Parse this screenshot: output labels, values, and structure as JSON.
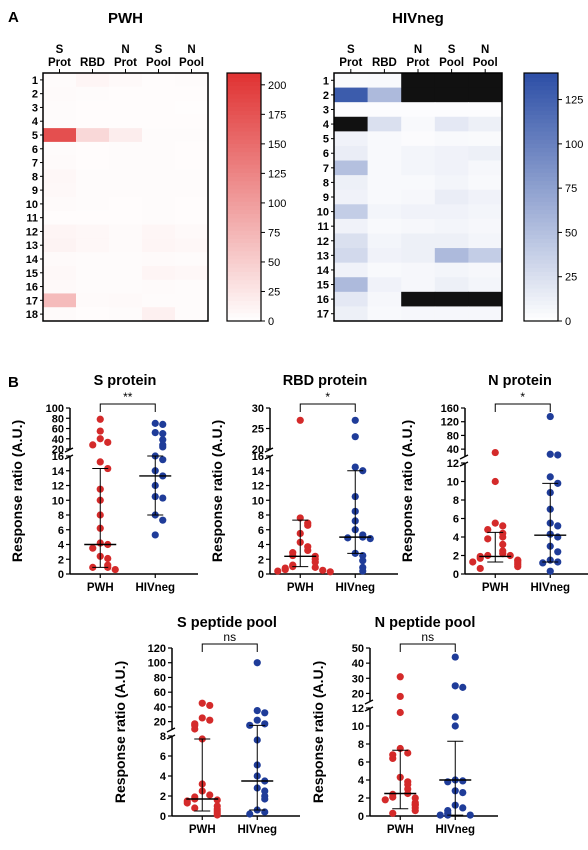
{
  "labels": {
    "panel_a": "A",
    "panel_b": "B"
  },
  "colors": {
    "pwh": "#d42a2a",
    "hivneg": "#1f3c99",
    "heatmap_pwh_max": "#e03232",
    "heatmap_hivneg_max": "#2d4fa6",
    "missing": "#111111"
  },
  "chart_data": [
    {
      "type": "heatmap",
      "title": "PWH",
      "columns": [
        "S\nProt",
        "RBD",
        "N\nProt",
        "S\nPool",
        "N\nPool"
      ],
      "rows": [
        "1",
        "2",
        "3",
        "4",
        "5",
        "6",
        "7",
        "8",
        "9",
        "10",
        "11",
        "12",
        "13",
        "14",
        "15",
        "16",
        "17",
        "18"
      ],
      "colorbar": {
        "min": 0,
        "max": 210,
        "ticks": [
          0,
          25,
          50,
          75,
          100,
          125,
          150,
          175,
          200
        ]
      },
      "values": [
        [
          4,
          10,
          6,
          3,
          4
        ],
        [
          5,
          4,
          3,
          3,
          3
        ],
        [
          4,
          3,
          3,
          3,
          2
        ],
        [
          4,
          3,
          3,
          3,
          3
        ],
        [
          180,
          40,
          18,
          4,
          4
        ],
        [
          4,
          3,
          4,
          4,
          3
        ],
        [
          5,
          3,
          4,
          4,
          3
        ],
        [
          8,
          4,
          4,
          4,
          4
        ],
        [
          7,
          4,
          4,
          4,
          4
        ],
        [
          5,
          4,
          3,
          4,
          3
        ],
        [
          3,
          3,
          3,
          4,
          3
        ],
        [
          10,
          8,
          5,
          9,
          6
        ],
        [
          12,
          8,
          5,
          10,
          8
        ],
        [
          5,
          4,
          4,
          5,
          4
        ],
        [
          7,
          4,
          4,
          10,
          8
        ],
        [
          6,
          4,
          4,
          5,
          4
        ],
        [
          70,
          5,
          6,
          4,
          4
        ],
        [
          5,
          3,
          4,
          15,
          4
        ]
      ]
    },
    {
      "type": "heatmap",
      "title": "HIVneg",
      "columns": [
        "S\nProt",
        "RBD",
        "N\nProt",
        "S\nPool",
        "N\nPool"
      ],
      "rows": [
        "1",
        "2",
        "3",
        "4",
        "5",
        "6",
        "7",
        "8",
        "9",
        "10",
        "11",
        "12",
        "13",
        "14",
        "15",
        "16",
        "17"
      ],
      "colorbar": {
        "min": 0,
        "max": 140,
        "ticks": [
          0,
          25,
          50,
          75,
          100,
          125
        ]
      },
      "values": [
        [
          4,
          5,
          null,
          null,
          null
        ],
        [
          130,
          55,
          null,
          null,
          null
        ],
        [
          2,
          2,
          2,
          2,
          2
        ],
        [
          null,
          25,
          5,
          18,
          12
        ],
        [
          10,
          5,
          3,
          5,
          4
        ],
        [
          14,
          5,
          8,
          10,
          12
        ],
        [
          50,
          5,
          8,
          10,
          6
        ],
        [
          12,
          5,
          5,
          8,
          5
        ],
        [
          10,
          5,
          6,
          14,
          10
        ],
        [
          40,
          8,
          10,
          10,
          8
        ],
        [
          10,
          5,
          6,
          8,
          6
        ],
        [
          25,
          8,
          12,
          12,
          8
        ],
        [
          30,
          10,
          12,
          55,
          40
        ],
        [
          10,
          5,
          6,
          8,
          6
        ],
        [
          55,
          10,
          6,
          12,
          8
        ],
        [
          18,
          6,
          null,
          null,
          null
        ],
        [
          12,
          5,
          6,
          6,
          6
        ]
      ]
    },
    {
      "type": "scatter",
      "title": "S protein",
      "ylabel": "Response ratio (A.U.)",
      "categories": [
        "PWH",
        "HIVneg"
      ],
      "significance": "**",
      "axis": {
        "lower": [
          0,
          16
        ],
        "lower_ticks": [
          0,
          2,
          4,
          6,
          8,
          10,
          12,
          14,
          16
        ],
        "upper": [
          20,
          100
        ],
        "upper_ticks": [
          20,
          40,
          60,
          80,
          100
        ]
      },
      "series": [
        {
          "category": "PWH",
          "median": 4.0,
          "iqr": [
            0.9,
            14.3
          ],
          "values": [
            78,
            55,
            40,
            33,
            28,
            15.2,
            14.3,
            11.5,
            10.0,
            8.0,
            6.2,
            4.2,
            4.0,
            3.5,
            2.4,
            2.1,
            1.2,
            0.9,
            0.9,
            0.6
          ]
        },
        {
          "category": "HIVneg",
          "median": 13.3,
          "iqr": [
            8.0,
            16.0
          ],
          "values": [
            70,
            68,
            52,
            50,
            38,
            28,
            24,
            16.0,
            15.5,
            14.0,
            13.3,
            12.0,
            10.5,
            10.3,
            8.0,
            7.3,
            5.3
          ]
        }
      ]
    },
    {
      "type": "scatter",
      "title": "RBD protein",
      "ylabel": "Response ratio (A.U.)",
      "categories": [
        "PWH",
        "HIVneg"
      ],
      "significance": "*",
      "axis": {
        "lower": [
          0,
          16
        ],
        "lower_ticks": [
          0,
          2,
          4,
          6,
          8,
          10,
          12,
          14,
          16
        ],
        "upper": [
          20,
          30
        ],
        "upper_ticks": [
          20,
          25,
          30
        ]
      },
      "series": [
        {
          "category": "PWH",
          "median": 2.4,
          "iqr": [
            1.0,
            7.3
          ],
          "values": [
            27,
            7.6,
            6.9,
            6.6,
            5.5,
            4.3,
            3.7,
            3.2,
            2.9,
            2.5,
            2.4,
            2.0,
            1.6,
            1.2,
            1.0,
            0.9,
            0.8,
            0.6,
            0.5,
            0.4,
            0.3
          ]
        },
        {
          "category": "HIVneg",
          "median": 5.0,
          "iqr": [
            2.8,
            14.0
          ],
          "values": [
            27,
            23,
            14.5,
            14.0,
            10.5,
            8.5,
            7.2,
            6.0,
            5.3,
            5.0,
            4.9,
            4.8,
            2.8,
            2.5,
            1.8,
            0.9,
            0.4
          ]
        }
      ]
    },
    {
      "type": "scatter",
      "title": "N protein",
      "ylabel": "Response ratio (A.U.)",
      "categories": [
        "PWH",
        "HIVneg"
      ],
      "significance": "*",
      "axis": {
        "lower": [
          0,
          12
        ],
        "lower_ticks": [
          0,
          2,
          4,
          6,
          8,
          10,
          12
        ],
        "upper": [
          20,
          160
        ],
        "upper_ticks": [
          40,
          80,
          120,
          160
        ]
      },
      "series": [
        {
          "category": "PWH",
          "median": 1.9,
          "iqr": [
            1.3,
            4.5
          ],
          "values": [
            30,
            10.0,
            5.5,
            5.2,
            4.8,
            4.4,
            4.0,
            3.8,
            3.2,
            2.5,
            2.2,
            2.0,
            2.0,
            1.9,
            1.7,
            1.5,
            1.4,
            1.3,
            1.2,
            1.0,
            0.8,
            0.6
          ]
        },
        {
          "category": "HIVneg",
          "median": 4.2,
          "iqr": [
            1.3,
            9.8
          ],
          "values": [
            135,
            25,
            23,
            10.5,
            9.8,
            8.8,
            7.0,
            5.5,
            5.2,
            4.3,
            4.0,
            3.0,
            2.4,
            1.5,
            1.3,
            1.2,
            0.3
          ]
        }
      ]
    },
    {
      "type": "scatter",
      "title": "S peptide pool",
      "ylabel": "Response ratio (A.U.)",
      "categories": [
        "PWH",
        "HIVneg"
      ],
      "significance": "ns",
      "axis": {
        "lower": [
          0,
          8
        ],
        "lower_ticks": [
          0,
          2,
          4,
          6,
          8
        ],
        "upper": [
          10,
          120
        ],
        "upper_ticks": [
          20,
          40,
          60,
          80,
          100,
          120
        ]
      },
      "series": [
        {
          "category": "PWH",
          "median": 1.7,
          "iqr": [
            0.5,
            7.7
          ],
          "values": [
            45,
            42,
            25,
            22,
            17,
            15,
            10,
            7.7,
            3.2,
            2.5,
            2.1,
            1.9,
            1.7,
            1.6,
            1.5,
            1.3,
            1.0,
            0.8,
            0.7,
            0.5,
            0.3,
            0.1
          ]
        },
        {
          "category": "HIVneg",
          "median": 3.5,
          "iqr": [
            0.6,
            15.0
          ],
          "values": [
            100,
            35,
            32,
            22,
            17,
            15,
            7.6,
            5.1,
            4.0,
            3.5,
            2.8,
            2.5,
            2.0,
            1.7,
            0.6,
            0.4,
            0.2
          ]
        }
      ]
    },
    {
      "type": "scatter",
      "title": "N peptide pool",
      "ylabel": "Response ratio (A.U.)",
      "categories": [
        "PWH",
        "HIVneg"
      ],
      "significance": "ns",
      "axis": {
        "lower": [
          0,
          12
        ],
        "lower_ticks": [
          0,
          2,
          4,
          6,
          8,
          10,
          12
        ],
        "upper": [
          15,
          50
        ],
        "upper_ticks": [
          20,
          30,
          40,
          50
        ]
      },
      "series": [
        {
          "category": "PWH",
          "median": 2.5,
          "iqr": [
            0.8,
            7.3
          ],
          "values": [
            31,
            18,
            11.5,
            7.5,
            7.0,
            6.8,
            6.4,
            4.3,
            3.8,
            3.5,
            3.0,
            2.5,
            2.4,
            2.1,
            2.0,
            1.8,
            1.5,
            1.3,
            1.2,
            0.9,
            0.6,
            0.3
          ]
        },
        {
          "category": "HIVneg",
          "median": 4.0,
          "iqr": [
            0.1,
            8.3
          ],
          "values": [
            44,
            25,
            24,
            11,
            10,
            4.0,
            3.9,
            3.8,
            2.8,
            2.6,
            1.2,
            0.9,
            0.6,
            0.3,
            0.1,
            0.1,
            0.1
          ]
        }
      ]
    }
  ]
}
